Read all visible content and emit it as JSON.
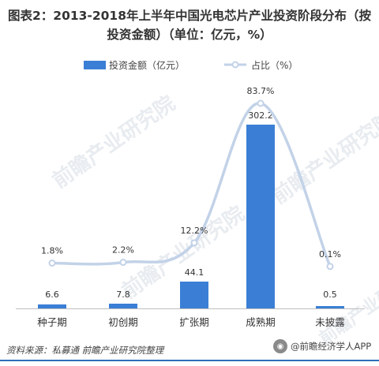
{
  "title_lines": [
    "图表2：2013-2018年上半年中国光电芯片产业投资阶段分布（按",
    "投资金额）（单位：亿元，%）"
  ],
  "chart_data": {
    "type": "bar",
    "categories": [
      "种子期",
      "初创期",
      "扩张期",
      "成熟期",
      "未披露"
    ],
    "series": [
      {
        "name": "投资金额（亿元）",
        "type": "bar",
        "values": [
          6.6,
          7.8,
          44.1,
          302.2,
          0.5
        ],
        "color": "#3a7fd5"
      },
      {
        "name": "占比（%）",
        "type": "line",
        "values": [
          1.8,
          2.2,
          12.2,
          83.7,
          0.1
        ],
        "color": "#c2d2e8"
      }
    ],
    "bar_labels": [
      "6.6",
      "7.8",
      "44.1",
      "302.2",
      "0.5"
    ],
    "line_labels": [
      "1.8%",
      "2.2%",
      "12.2%",
      "83.7%",
      "0.1%"
    ],
    "legend_position": "top"
  },
  "watermark_text": "前瞻产业研究院",
  "footer_source": "资料来源：私募通   前瞻产业研究院整理",
  "logo_text": "@前瞻经济学人APP"
}
